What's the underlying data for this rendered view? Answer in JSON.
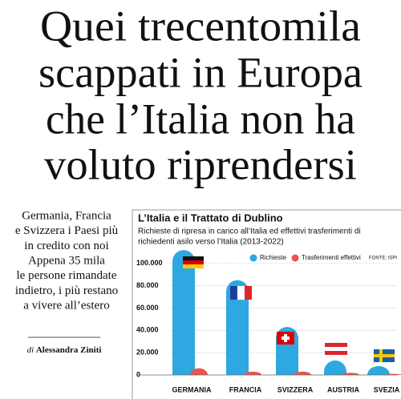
{
  "header": {
    "title_lines": [
      "Quei trecentomila",
      "scappati in Europa",
      "che l’Italia non ha",
      "voluto riprendersi"
    ]
  },
  "summary_lines": [
    "Germania, Francia",
    "e Svizzera i Paesi più",
    "in credito con noi",
    "Appena 35 mila",
    "le persone rimandate",
    "indietro, i più restano",
    "a vivere all’estero"
  ],
  "byline": {
    "prefix": "di",
    "name": "Alessandra Ziniti"
  },
  "chart_data": {
    "type": "bar",
    "title": "L’Italia e il Trattato di Dublino",
    "subtitle_lines": [
      "Richieste di ripresa in carico all’Italia ed effettivi trasferimenti di",
      "richiedenti asilo verso l’Italia (2013-2022)"
    ],
    "source": "FONTE: ISPI",
    "categories": [
      "GERMANIA",
      "FRANCIA",
      "SVIZZERA",
      "AUSTRIA",
      "SVEZIA"
    ],
    "series": [
      {
        "name": "Richieste",
        "color": "#2ea8e0",
        "values": [
          112000,
          85000,
          43000,
          13000,
          8000
        ]
      },
      {
        "name": "Trasferimenti effettivi",
        "color": "#e8554e",
        "values": [
          6000,
          3000,
          3000,
          2000,
          1000
        ]
      }
    ],
    "ylim": [
      0,
      115000
    ],
    "yticks": [
      0,
      {
        "value": 20000,
        "label": "20.000"
      },
      {
        "value": 40000,
        "label": "40.000"
      },
      {
        "value": 60000,
        "label": "60.000"
      },
      {
        "value": 80000,
        "label": "80.000"
      },
      {
        "value": 100000,
        "label": "100.000"
      }
    ],
    "grid": true,
    "legend": "top"
  }
}
